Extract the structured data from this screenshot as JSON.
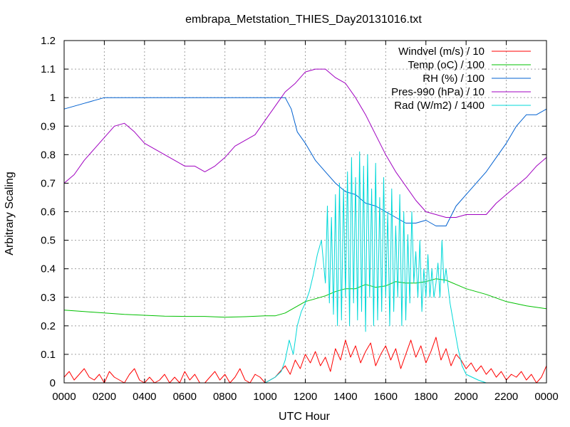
{
  "chart_data": {
    "type": "line",
    "title": "embrapa_Metstation_THIES_Day20131016.txt",
    "xlabel": "UTC Hour",
    "ylabel": "Arbitrary Scaling",
    "xlim": [
      0,
      24
    ],
    "ylim": [
      0,
      1.2
    ],
    "grid": true,
    "legend_position": "top-right",
    "x_ticks": [
      {
        "value": 0,
        "label": "0000"
      },
      {
        "value": 2,
        "label": "0200"
      },
      {
        "value": 4,
        "label": "0400"
      },
      {
        "value": 6,
        "label": "0600"
      },
      {
        "value": 8,
        "label": "0800"
      },
      {
        "value": 10,
        "label": "1000"
      },
      {
        "value": 12,
        "label": "1200"
      },
      {
        "value": 14,
        "label": "1400"
      },
      {
        "value": 16,
        "label": "1600"
      },
      {
        "value": 18,
        "label": "1800"
      },
      {
        "value": 20,
        "label": "2000"
      },
      {
        "value": 22,
        "label": "2200"
      },
      {
        "value": 24,
        "label": "0000"
      }
    ],
    "y_ticks": [
      {
        "value": 0,
        "label": "0"
      },
      {
        "value": 0.1,
        "label": "0.1"
      },
      {
        "value": 0.2,
        "label": "0.2"
      },
      {
        "value": 0.3,
        "label": "0.3"
      },
      {
        "value": 0.4,
        "label": "0.4"
      },
      {
        "value": 0.5,
        "label": "0.5"
      },
      {
        "value": 0.6,
        "label": "0.6"
      },
      {
        "value": 0.7,
        "label": "0.7"
      },
      {
        "value": 0.8,
        "label": "0.8"
      },
      {
        "value": 0.9,
        "label": "0.9"
      },
      {
        "value": 1.0,
        "label": "1"
      },
      {
        "value": 1.1,
        "label": "1.1"
      },
      {
        "value": 1.2,
        "label": "1.2"
      }
    ],
    "series": [
      {
        "name": "Windvel (m/s) / 10",
        "color": "#ff0000",
        "x": [
          0,
          0.25,
          0.5,
          0.75,
          1,
          1.25,
          1.5,
          1.75,
          2,
          2.25,
          2.5,
          2.75,
          3,
          3.25,
          3.5,
          3.75,
          4,
          4.25,
          4.5,
          4.75,
          5,
          5.25,
          5.5,
          5.75,
          6,
          6.25,
          6.5,
          6.75,
          7,
          7.25,
          7.5,
          7.75,
          8,
          8.25,
          8.5,
          8.75,
          9,
          9.25,
          9.5,
          9.75,
          10,
          10.25,
          10.5,
          10.75,
          11,
          11.25,
          11.5,
          11.75,
          12,
          12.25,
          12.5,
          12.75,
          13,
          13.25,
          13.5,
          13.75,
          14,
          14.25,
          14.5,
          14.75,
          15,
          15.25,
          15.5,
          15.75,
          16,
          16.25,
          16.5,
          16.75,
          17,
          17.25,
          17.5,
          17.75,
          18,
          18.25,
          18.5,
          18.75,
          19,
          19.25,
          19.5,
          19.75,
          20,
          20.25,
          20.5,
          20.75,
          21,
          21.25,
          21.5,
          21.75,
          22,
          22.25,
          22.5,
          22.75,
          23,
          23.25,
          23.5,
          23.75,
          24
        ],
        "y": [
          0.02,
          0.04,
          0.01,
          0.03,
          0.05,
          0.02,
          0.01,
          0.03,
          0.0,
          0.04,
          0.02,
          0.01,
          0.0,
          0.03,
          0.05,
          0.01,
          0.0,
          0.02,
          0.0,
          0.01,
          0.03,
          0.0,
          0.02,
          0.0,
          0.04,
          0.01,
          0.03,
          0.0,
          0.0,
          0.02,
          0.04,
          0.01,
          0.03,
          0.0,
          0.02,
          0.05,
          0.01,
          0.0,
          0.03,
          0.02,
          0.0,
          0.01,
          0.02,
          0.04,
          0.06,
          0.03,
          0.08,
          0.05,
          0.1,
          0.07,
          0.11,
          0.06,
          0.09,
          0.04,
          0.12,
          0.08,
          0.15,
          0.09,
          0.13,
          0.07,
          0.11,
          0.14,
          0.06,
          0.1,
          0.13,
          0.08,
          0.12,
          0.05,
          0.1,
          0.15,
          0.09,
          0.13,
          0.07,
          0.11,
          0.16,
          0.08,
          0.12,
          0.06,
          0.1,
          0.08,
          0.05,
          0.07,
          0.04,
          0.06,
          0.03,
          0.05,
          0.02,
          0.04,
          0.01,
          0.03,
          0.02,
          0.04,
          0.01,
          0.03,
          0.0,
          0.02,
          0.06
        ]
      },
      {
        "name": "Temp (oC) / 100",
        "color": "#00c000",
        "x": [
          0,
          1,
          2,
          3,
          4,
          5,
          6,
          7,
          8,
          9,
          10,
          10.5,
          11,
          11.5,
          12,
          12.5,
          13,
          13.5,
          14,
          14.5,
          15,
          15.5,
          16,
          16.5,
          17,
          17.5,
          18,
          18.5,
          19,
          19.5,
          20,
          21,
          22,
          23,
          24
        ],
        "y": [
          0.255,
          0.25,
          0.245,
          0.24,
          0.237,
          0.234,
          0.233,
          0.233,
          0.23,
          0.232,
          0.235,
          0.235,
          0.245,
          0.265,
          0.285,
          0.295,
          0.305,
          0.32,
          0.33,
          0.33,
          0.345,
          0.335,
          0.34,
          0.355,
          0.35,
          0.35,
          0.355,
          0.365,
          0.36,
          0.345,
          0.33,
          0.31,
          0.285,
          0.27,
          0.26
        ]
      },
      {
        "name": "RH (%) / 100",
        "color": "#0060d0",
        "x": [
          0,
          0.5,
          1,
          1.5,
          2,
          2.5,
          3,
          4,
          5,
          6,
          7,
          8,
          9,
          10,
          10.5,
          11,
          11.3,
          11.6,
          12,
          12.5,
          13,
          13.5,
          14,
          14.5,
          15,
          15.5,
          16,
          16.5,
          17,
          17.5,
          18,
          18.5,
          19,
          19.5,
          20,
          20.5,
          21,
          21.5,
          22,
          22.5,
          23,
          23.5,
          24
        ],
        "y": [
          0.96,
          0.97,
          0.98,
          0.99,
          1.0,
          1.0,
          1.0,
          1.0,
          1.0,
          1.0,
          1.0,
          1.0,
          1.0,
          1.0,
          1.0,
          1.0,
          0.96,
          0.88,
          0.84,
          0.78,
          0.74,
          0.7,
          0.67,
          0.66,
          0.63,
          0.62,
          0.6,
          0.58,
          0.56,
          0.56,
          0.57,
          0.55,
          0.55,
          0.62,
          0.66,
          0.7,
          0.74,
          0.79,
          0.84,
          0.9,
          0.94,
          0.94,
          0.96
        ]
      },
      {
        "name": "Pres-990 (hPa) / 10",
        "color": "#a000c0",
        "x": [
          0,
          0.5,
          1,
          1.5,
          2,
          2.5,
          3,
          3.5,
          4,
          4.5,
          5,
          5.5,
          6,
          6.5,
          7,
          7.5,
          8,
          8.5,
          9,
          9.5,
          10,
          10.5,
          11,
          11.5,
          12,
          12.5,
          13,
          13.5,
          14,
          14.5,
          15,
          15.5,
          16,
          16.5,
          17,
          17.5,
          18,
          18.5,
          19,
          19.5,
          20,
          20.5,
          21,
          21.5,
          22,
          22.5,
          23,
          23.5,
          24
        ],
        "y": [
          0.7,
          0.73,
          0.78,
          0.82,
          0.86,
          0.9,
          0.91,
          0.88,
          0.84,
          0.82,
          0.8,
          0.78,
          0.76,
          0.76,
          0.74,
          0.76,
          0.79,
          0.83,
          0.85,
          0.87,
          0.92,
          0.97,
          1.02,
          1.05,
          1.09,
          1.1,
          1.1,
          1.07,
          1.05,
          1.0,
          0.94,
          0.87,
          0.8,
          0.74,
          0.69,
          0.64,
          0.6,
          0.59,
          0.58,
          0.58,
          0.59,
          0.59,
          0.59,
          0.63,
          0.66,
          0.69,
          0.72,
          0.76,
          0.79
        ]
      },
      {
        "name": "Rad (W/m2) / 1400",
        "color": "#00d8d8",
        "x": [
          0,
          10,
          10.5,
          10.8,
          11,
          11.2,
          11.4,
          11.6,
          11.8,
          12,
          12.2,
          12.4,
          12.6,
          12.8,
          13,
          13.1,
          13.2,
          13.3,
          13.4,
          13.5,
          13.6,
          13.7,
          13.8,
          13.9,
          14,
          14.1,
          14.2,
          14.3,
          14.4,
          14.5,
          14.6,
          14.7,
          14.8,
          14.9,
          15,
          15.1,
          15.2,
          15.3,
          15.4,
          15.5,
          15.6,
          15.7,
          15.8,
          15.9,
          16,
          16.1,
          16.2,
          16.3,
          16.4,
          16.5,
          16.6,
          16.7,
          16.8,
          16.9,
          17,
          17.1,
          17.2,
          17.3,
          17.4,
          17.5,
          17.6,
          17.7,
          17.8,
          17.9,
          18,
          18.1,
          18.2,
          18.3,
          18.4,
          18.5,
          18.6,
          18.7,
          18.8,
          18.9,
          19,
          19.2,
          19.4,
          19.6,
          19.8,
          20,
          20.3,
          20.6,
          21,
          24
        ],
        "y": [
          0,
          0,
          0.02,
          0.04,
          0.08,
          0.15,
          0.1,
          0.2,
          0.25,
          0.28,
          0.32,
          0.38,
          0.45,
          0.5,
          0.35,
          0.62,
          0.28,
          0.58,
          0.24,
          0.66,
          0.2,
          0.7,
          0.22,
          0.68,
          0.3,
          0.74,
          0.2,
          0.79,
          0.28,
          0.72,
          0.22,
          0.81,
          0.25,
          0.76,
          0.18,
          0.8,
          0.3,
          0.68,
          0.2,
          0.77,
          0.22,
          0.65,
          0.25,
          0.72,
          0.3,
          0.6,
          0.2,
          0.68,
          0.25,
          0.55,
          0.3,
          0.66,
          0.2,
          0.6,
          0.22,
          0.52,
          0.28,
          0.6,
          0.35,
          0.46,
          0.3,
          0.5,
          0.25,
          0.4,
          0.3,
          0.45,
          0.3,
          0.4,
          0.3,
          0.35,
          0.42,
          0.3,
          0.5,
          0.35,
          0.4,
          0.28,
          0.2,
          0.12,
          0.06,
          0.03,
          0.02,
          0.01,
          0,
          0
        ]
      }
    ]
  }
}
